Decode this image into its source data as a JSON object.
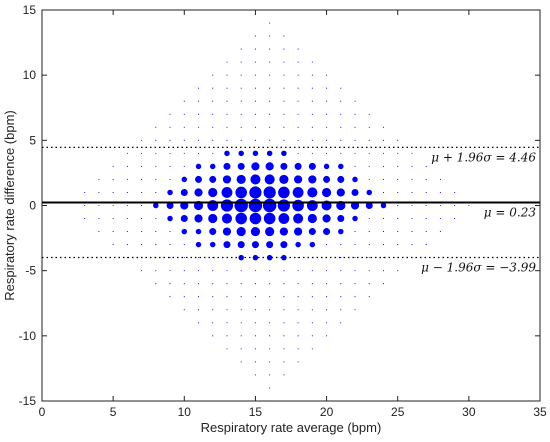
{
  "chart_data": {
    "type": "scatter",
    "title": "",
    "xlabel": "Respiratory rate average (bpm)",
    "ylabel": "Respiratory rate difference (bpm)",
    "xlim": [
      0,
      35
    ],
    "ylim": [
      -15,
      15
    ],
    "xticks": [
      "0",
      "5",
      "10",
      "15",
      "20",
      "25",
      "30",
      "35"
    ],
    "yticks": [
      "15",
      "10",
      "5",
      "0",
      "-5",
      "-10",
      "-15"
    ],
    "grid": false,
    "legend": "none",
    "marker_color": "#0000ee",
    "note": "Bubble scatter; marker area encodes number of coincident observations (w = relative weight).",
    "lines": [
      {
        "name": "mean",
        "y": 0.23,
        "style": "solid",
        "label": "μ = 0.23"
      },
      {
        "name": "upper-loa",
        "y": 4.46,
        "style": "dotted",
        "label": "μ + 1.96σ = 4.46"
      },
      {
        "name": "lower-loa",
        "y": -3.99,
        "style": "dotted",
        "label": "μ − 1.96σ = −3.99"
      }
    ],
    "points": [
      {
        "x": 14,
        "y": 0,
        "w": 10
      },
      {
        "x": 15,
        "y": 0,
        "w": 10
      },
      {
        "x": 16,
        "y": 0,
        "w": 10
      },
      {
        "x": 13,
        "y": 0,
        "w": 8
      },
      {
        "x": 17,
        "y": 0,
        "w": 8
      },
      {
        "x": 18,
        "y": 0,
        "w": 7
      },
      {
        "x": 12,
        "y": 0,
        "w": 6
      },
      {
        "x": 19,
        "y": 0,
        "w": 6
      },
      {
        "x": 20,
        "y": 0,
        "w": 5
      },
      {
        "x": 11,
        "y": 0,
        "w": 4
      },
      {
        "x": 21,
        "y": 0,
        "w": 4
      },
      {
        "x": 10,
        "y": 0,
        "w": 3
      },
      {
        "x": 22,
        "y": 0,
        "w": 3
      },
      {
        "x": 9,
        "y": 0,
        "w": 2
      },
      {
        "x": 23,
        "y": 0,
        "w": 2
      },
      {
        "x": 8,
        "y": 0,
        "w": 1
      },
      {
        "x": 24,
        "y": 0,
        "w": 1
      },
      {
        "x": 14,
        "y": 1,
        "w": 7
      },
      {
        "x": 15,
        "y": 1,
        "w": 8
      },
      {
        "x": 16,
        "y": 1,
        "w": 8
      },
      {
        "x": 13,
        "y": 1,
        "w": 6
      },
      {
        "x": 17,
        "y": 1,
        "w": 7
      },
      {
        "x": 18,
        "y": 1,
        "w": 6
      },
      {
        "x": 12,
        "y": 1,
        "w": 4
      },
      {
        "x": 19,
        "y": 1,
        "w": 5
      },
      {
        "x": 20,
        "y": 1,
        "w": 4
      },
      {
        "x": 11,
        "y": 1,
        "w": 3
      },
      {
        "x": 21,
        "y": 1,
        "w": 3
      },
      {
        "x": 10,
        "y": 1,
        "w": 2
      },
      {
        "x": 22,
        "y": 1,
        "w": 2
      },
      {
        "x": 9,
        "y": 1,
        "w": 1
      },
      {
        "x": 23,
        "y": 1,
        "w": 1
      },
      {
        "x": 14,
        "y": -1,
        "w": 7
      },
      {
        "x": 15,
        "y": -1,
        "w": 7
      },
      {
        "x": 16,
        "y": -1,
        "w": 7
      },
      {
        "x": 13,
        "y": -1,
        "w": 5
      },
      {
        "x": 17,
        "y": -1,
        "w": 6
      },
      {
        "x": 18,
        "y": -1,
        "w": 5
      },
      {
        "x": 12,
        "y": -1,
        "w": 4
      },
      {
        "x": 19,
        "y": -1,
        "w": 4
      },
      {
        "x": 20,
        "y": -1,
        "w": 3
      },
      {
        "x": 11,
        "y": -1,
        "w": 3
      },
      {
        "x": 21,
        "y": -1,
        "w": 2
      },
      {
        "x": 10,
        "y": -1,
        "w": 2
      },
      {
        "x": 22,
        "y": -1,
        "w": 1
      },
      {
        "x": 9,
        "y": -1,
        "w": 1
      },
      {
        "x": 14,
        "y": 2,
        "w": 4
      },
      {
        "x": 15,
        "y": 2,
        "w": 5
      },
      {
        "x": 16,
        "y": 2,
        "w": 5
      },
      {
        "x": 13,
        "y": 2,
        "w": 3
      },
      {
        "x": 17,
        "y": 2,
        "w": 4
      },
      {
        "x": 18,
        "y": 2,
        "w": 3
      },
      {
        "x": 12,
        "y": 2,
        "w": 2
      },
      {
        "x": 19,
        "y": 2,
        "w": 3
      },
      {
        "x": 20,
        "y": 2,
        "w": 2
      },
      {
        "x": 11,
        "y": 2,
        "w": 2
      },
      {
        "x": 21,
        "y": 2,
        "w": 2
      },
      {
        "x": 10,
        "y": 2,
        "w": 1
      },
      {
        "x": 22,
        "y": 2,
        "w": 1
      },
      {
        "x": 14,
        "y": -2,
        "w": 4
      },
      {
        "x": 15,
        "y": -2,
        "w": 4
      },
      {
        "x": 16,
        "y": -2,
        "w": 4
      },
      {
        "x": 13,
        "y": -2,
        "w": 3
      },
      {
        "x": 17,
        "y": -2,
        "w": 3
      },
      {
        "x": 18,
        "y": -2,
        "w": 3
      },
      {
        "x": 12,
        "y": -2,
        "w": 2
      },
      {
        "x": 19,
        "y": -2,
        "w": 2
      },
      {
        "x": 20,
        "y": -2,
        "w": 2
      },
      {
        "x": 11,
        "y": -2,
        "w": 1
      },
      {
        "x": 21,
        "y": -2,
        "w": 1
      },
      {
        "x": 10,
        "y": -2,
        "w": 1
      },
      {
        "x": 14,
        "y": 3,
        "w": 2
      },
      {
        "x": 15,
        "y": 3,
        "w": 3
      },
      {
        "x": 16,
        "y": 3,
        "w": 3
      },
      {
        "x": 13,
        "y": 3,
        "w": 2
      },
      {
        "x": 17,
        "y": 3,
        "w": 2
      },
      {
        "x": 18,
        "y": 3,
        "w": 2
      },
      {
        "x": 12,
        "y": 3,
        "w": 1
      },
      {
        "x": 19,
        "y": 3,
        "w": 2
      },
      {
        "x": 20,
        "y": 3,
        "w": 1
      },
      {
        "x": 11,
        "y": 3,
        "w": 1
      },
      {
        "x": 21,
        "y": 3,
        "w": 1
      },
      {
        "x": 14,
        "y": -3,
        "w": 2
      },
      {
        "x": 15,
        "y": -3,
        "w": 2
      },
      {
        "x": 16,
        "y": -3,
        "w": 2
      },
      {
        "x": 13,
        "y": -3,
        "w": 2
      },
      {
        "x": 17,
        "y": -3,
        "w": 2
      },
      {
        "x": 18,
        "y": -3,
        "w": 1
      },
      {
        "x": 12,
        "y": -3,
        "w": 1
      },
      {
        "x": 19,
        "y": -3,
        "w": 1
      },
      {
        "x": 11,
        "y": -3,
        "w": 1
      },
      {
        "x": 14,
        "y": 4,
        "w": 1
      },
      {
        "x": 15,
        "y": 4,
        "w": 1
      },
      {
        "x": 16,
        "y": 4,
        "w": 1
      },
      {
        "x": 17,
        "y": 4,
        "w": 1
      },
      {
        "x": 13,
        "y": 4,
        "w": 1
      },
      {
        "x": 14,
        "y": -4,
        "w": 1
      },
      {
        "x": 15,
        "y": -4,
        "w": 1
      },
      {
        "x": 16,
        "y": -4,
        "w": 1
      },
      {
        "x": 17,
        "y": -4,
        "w": 1
      }
    ]
  }
}
